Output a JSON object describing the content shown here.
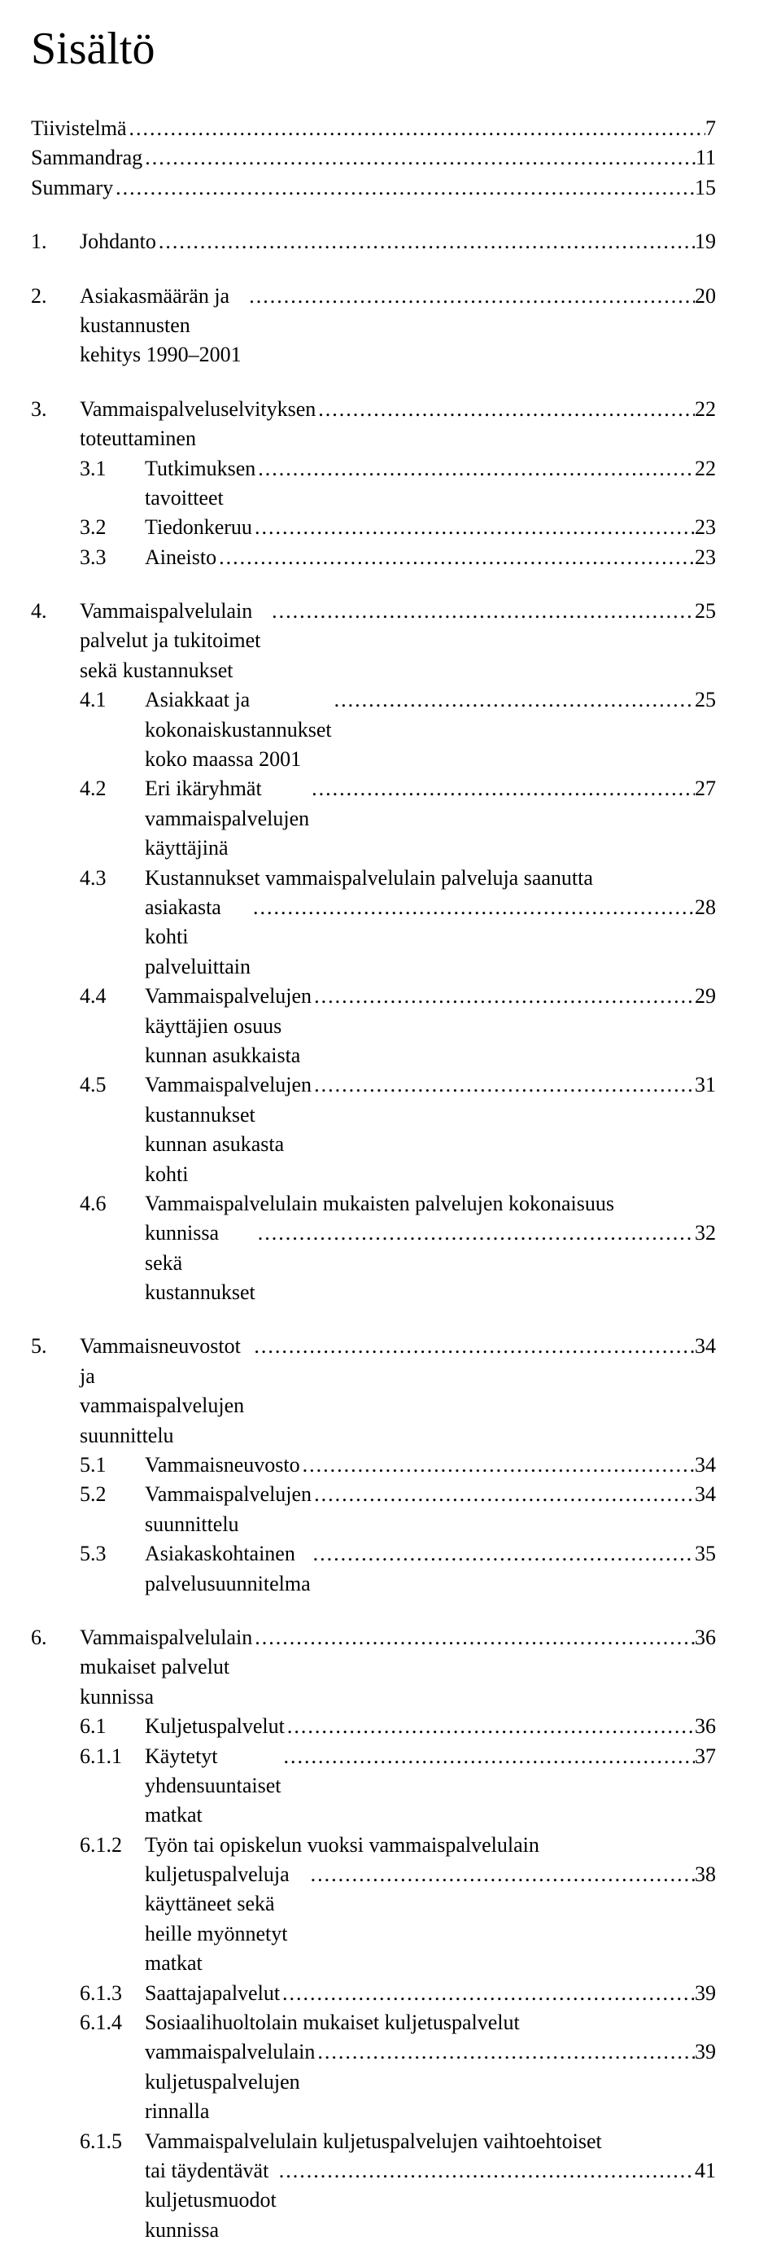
{
  "title": "Sisältö",
  "dots": "......................................................................................................................................................................",
  "front": [
    {
      "label": "Tiivistelmä",
      "page": "7"
    },
    {
      "label": "Sammandrag",
      "page": "11"
    },
    {
      "label": "Summary",
      "page": "15"
    }
  ],
  "sections": [
    {
      "num": "1.",
      "label": "Johdanto",
      "page": "19",
      "subs": []
    },
    {
      "num": "2.",
      "label": "Asiakasmäärän ja kustannusten kehitys 1990–2001",
      "page": "20",
      "subs": []
    },
    {
      "num": "3.",
      "label": "Vammaispalveluselvityksen toteuttaminen",
      "page": "22",
      "subs": [
        {
          "num": "3.1",
          "label": "Tutkimuksen tavoitteet",
          "page": "22"
        },
        {
          "num": "3.2",
          "label": "Tiedonkeruu",
          "page": "23"
        },
        {
          "num": "3.3",
          "label": "Aineisto",
          "page": "23"
        }
      ]
    },
    {
      "num": "4.",
      "label": "Vammaispalvelulain palvelut ja tukitoimet sekä kustannukset",
      "page": "25",
      "subs": [
        {
          "num": "4.1",
          "label": "Asiakkaat ja kokonaiskustannukset koko maassa 2001",
          "page": "25"
        },
        {
          "num": "4.2",
          "label": "Eri ikäryhmät vammaispalvelujen käyttäjinä",
          "page": "27"
        },
        {
          "num": "4.3",
          "label": "Kustannukset vammaispalvelulain palveluja saanutta",
          "cont": "asiakasta kohti palveluittain",
          "page": "28"
        },
        {
          "num": "4.4",
          "label": "Vammaispalvelujen käyttäjien osuus kunnan asukkaista",
          "page": "29"
        },
        {
          "num": "4.5",
          "label": "Vammaispalvelujen kustannukset kunnan asukasta kohti",
          "page": "31"
        },
        {
          "num": "4.6",
          "label": "Vammaispalvelulain mukaisten palvelujen kokonaisuus",
          "cont": "kunnissa sekä kustannukset",
          "page": "32"
        }
      ]
    },
    {
      "num": "5.",
      "label": "Vammaisneuvostot ja vammaispalvelujen suunnittelu",
      "page": "34",
      "subs": [
        {
          "num": "5.1",
          "label": "Vammaisneuvosto",
          "page": "34"
        },
        {
          "num": "5.2",
          "label": "Vammaispalvelujen suunnittelu",
          "page": "34"
        },
        {
          "num": "5.3",
          "label": "Asiakaskohtainen palvelusuunnitelma",
          "page": "35"
        }
      ]
    },
    {
      "num": "6.",
      "label": "Vammaispalvelulain mukaiset palvelut kunnissa",
      "page": "36",
      "subs": [
        {
          "num": "6.1",
          "label": "Kuljetuspalvelut",
          "page": "36"
        },
        {
          "num": "6.1.1",
          "label": "Käytetyt yhdensuuntaiset matkat",
          "page": "37"
        },
        {
          "num": "6.1.2",
          "label": "Työn tai opiskelun vuoksi vammaispalvelulain",
          "cont": "kuljetuspalveluja käyttäneet sekä heille myönnetyt matkat",
          "page": "38"
        },
        {
          "num": "6.1.3",
          "label": "Saattajapalvelut",
          "page": "39"
        },
        {
          "num": "6.1.4",
          "label": "Sosiaalihuoltolain mukaiset kuljetuspalvelut",
          "cont": "vammaispalvelulain kuljetuspalvelujen rinnalla",
          "page": "39"
        },
        {
          "num": "6.1.5",
          "label": "Vammaispalvelulain kuljetuspalvelujen vaihtoehtoiset",
          "cont": "tai täydentävät kuljetusmuodot kunnissa",
          "page": "41"
        }
      ]
    }
  ]
}
